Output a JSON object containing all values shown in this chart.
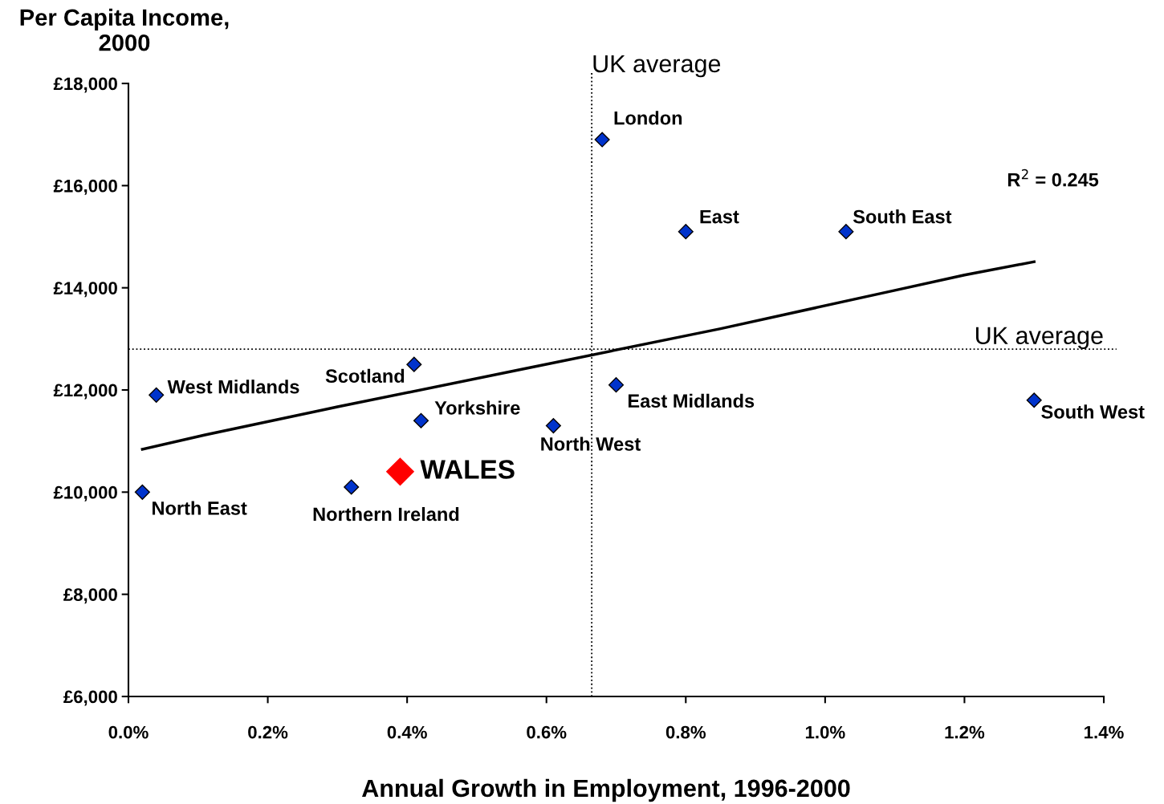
{
  "chart_data": {
    "type": "scatter",
    "xlabel": "Annual Growth in Employment, 1996-2000",
    "ylabel": "Per Capita Income,\n2000",
    "marker": "diamond",
    "grid": false,
    "legend": false,
    "xlim": [
      0,
      1.4
    ],
    "ylim": [
      6000,
      18000
    ],
    "xticks": [
      {
        "value": 0,
        "label": "0.0%"
      },
      {
        "value": 0.2,
        "label": "0.2%"
      },
      {
        "value": 0.4,
        "label": "0.4%"
      },
      {
        "value": 0.6,
        "label": "0.6%"
      },
      {
        "value": 0.8,
        "label": "0.8%"
      },
      {
        "value": 1.0,
        "label": "1.0%"
      },
      {
        "value": 1.2,
        "label": "1.2%"
      },
      {
        "value": 1.4,
        "label": "1.4%"
      }
    ],
    "yticks": [
      {
        "value": 6000,
        "label": "£6,000"
      },
      {
        "value": 8000,
        "label": "£8,000"
      },
      {
        "value": 10000,
        "label": "£10,000"
      },
      {
        "value": 12000,
        "label": "£12,000"
      },
      {
        "value": 14000,
        "label": "£14,000"
      },
      {
        "value": 16000,
        "label": "£16,000"
      },
      {
        "value": 18000,
        "label": "£18,000"
      }
    ],
    "series": [
      {
        "color": "#0033cc",
        "x": [
          0.68,
          0.8,
          1.03,
          0.41,
          0.04,
          0.42,
          0.61,
          0.7,
          1.3,
          0.32,
          0.02
        ],
        "values": [
          16900,
          15100,
          15100,
          12500,
          11900,
          11400,
          11300,
          12100,
          11800,
          10100,
          10000
        ]
      },
      {
        "color": "#ff0000",
        "x": [
          0.39
        ],
        "values": [
          10400
        ]
      },
      {
        "type": "line",
        "color": "#000000",
        "line_style": "solid",
        "marker": "none",
        "x": [
          0.02,
          0.11,
          0.3,
          0.57,
          0.85,
          1.1,
          1.2,
          1.3
        ],
        "values": [
          10840,
          11120,
          11670,
          12420,
          13200,
          13950,
          14250,
          14510
        ]
      }
    ],
    "ref_lines": [
      {
        "axis": "x",
        "value": 0.665,
        "label": "UK average",
        "color": "#000000",
        "line_style": "dotted"
      },
      {
        "axis": "y",
        "value": 12800,
        "label": "UK average",
        "color": "#000000",
        "line_style": "dotted"
      }
    ],
    "annotations": [
      {
        "text": "London",
        "x": 0.68,
        "y": 16900
      },
      {
        "text": "East",
        "x": 0.8,
        "y": 15100
      },
      {
        "text": "South East",
        "x": 1.03,
        "y": 15100
      },
      {
        "text": "Scotland",
        "x": 0.41,
        "y": 12500
      },
      {
        "text": "West Midlands",
        "x": 0.04,
        "y": 11900
      },
      {
        "text": "Yorkshire",
        "x": 0.42,
        "y": 11400
      },
      {
        "text": "North West",
        "x": 0.61,
        "y": 11300
      },
      {
        "text": "East Midlands",
        "x": 0.7,
        "y": 12100
      },
      {
        "text": "South West",
        "x": 1.3,
        "y": 11800
      },
      {
        "text": "Northern Ireland",
        "x": 0.32,
        "y": 10100
      },
      {
        "text": "North East",
        "x": 0.02,
        "y": 10000
      },
      {
        "text": "WALES",
        "x": 0.39,
        "y": 10400
      },
      "R$^{2}$ = 0.245"
    ]
  }
}
